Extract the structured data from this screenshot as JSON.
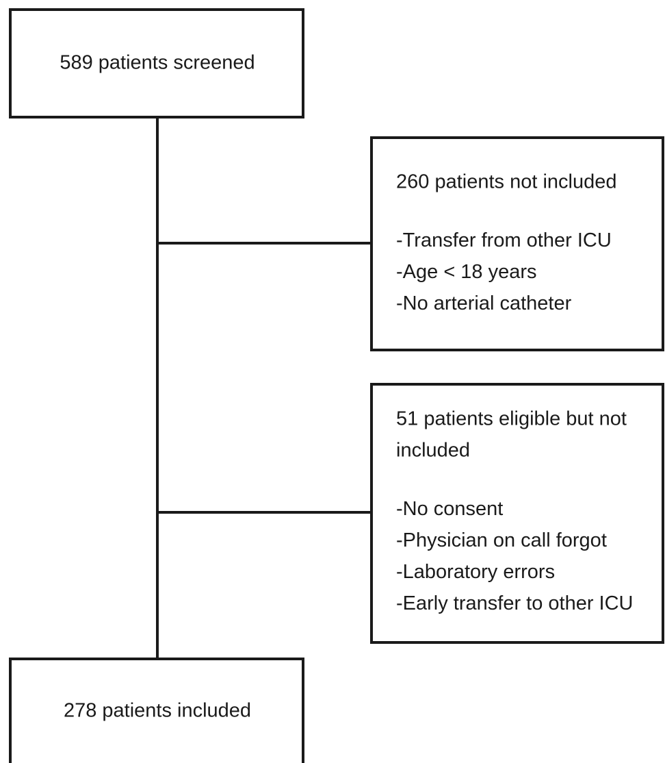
{
  "nodes": [
    {
      "label": "589 patients screened"
    },
    {
      "title": [
        "260 patients not included"
      ],
      "items": [
        "-Transfer from other ICU",
        "-Age < 18 years",
        "-No arterial catheter"
      ]
    },
    {
      "title": [
        "51 patients eligible but not",
        "included"
      ],
      "items": [
        "-No consent",
        "-Physician on call forgot",
        "-Laboratory errors",
        "-Early transfer to other ICU"
      ]
    },
    {
      "label": "278 patients included"
    }
  ]
}
